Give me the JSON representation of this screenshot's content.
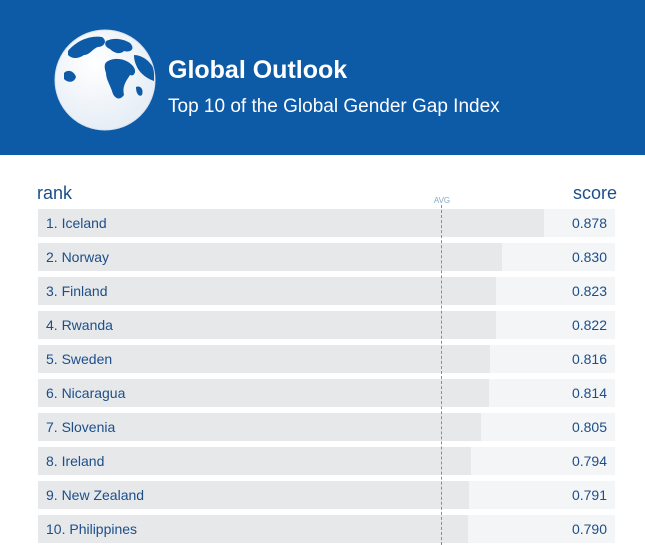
{
  "header": {
    "title": "Global Outlook",
    "subtitle": "Top 10 of the Global Gender Gap Index",
    "background_color": "#0d5aa7",
    "icon": "globe-icon"
  },
  "chart_data": {
    "type": "bar",
    "title": "Global Outlook",
    "subtitle": "Top 10 of the Global Gender Gap Index",
    "rank_header": "rank",
    "score_header": "score",
    "average_label": "AVG",
    "ranks": [
      1,
      2,
      3,
      4,
      5,
      6,
      7,
      8,
      9,
      10
    ],
    "categories": [
      "Iceland",
      "Norway",
      "Finland",
      "Rwanda",
      "Sweden",
      "Nicaragua",
      "Slovenia",
      "Ireland",
      "New Zealand",
      "Philippines"
    ],
    "values": [
      0.878,
      0.83,
      0.823,
      0.822,
      0.816,
      0.814,
      0.805,
      0.794,
      0.791,
      0.79
    ],
    "value_labels": [
      "0.878",
      "0.830",
      "0.823",
      "0.822",
      "0.816",
      "0.814",
      "0.805",
      "0.794",
      "0.791",
      "0.790"
    ],
    "colors": {
      "bar": "#e7e8e9",
      "track": "#f4f5f6",
      "text": "#1c4f8a",
      "avg_line": "#6e93bd"
    }
  }
}
